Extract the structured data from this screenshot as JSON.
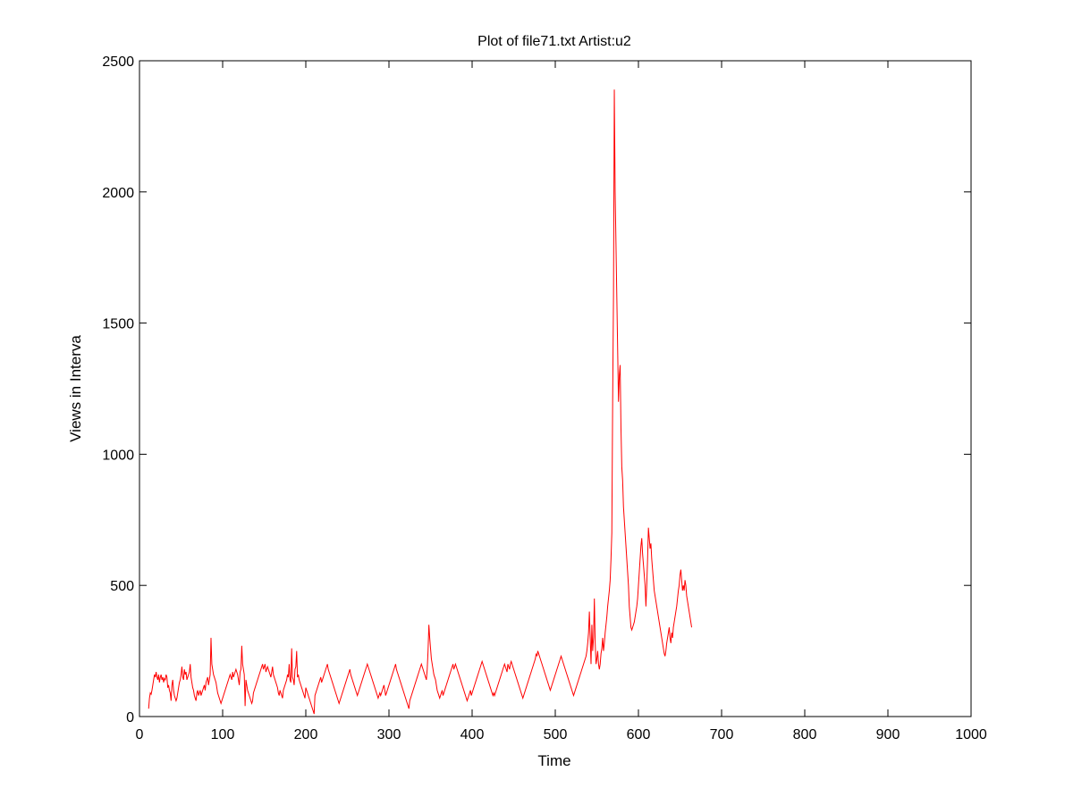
{
  "chart_data": {
    "type": "line",
    "title": "Plot of file71.txt Artist:u2",
    "xlabel": "Time",
    "ylabel": "Views in Interva",
    "xlim": [
      0,
      1000
    ],
    "ylim": [
      0,
      2500
    ],
    "xticks": [
      0,
      100,
      200,
      300,
      400,
      500,
      600,
      700,
      800,
      900,
      1000
    ],
    "yticks": [
      0,
      500,
      1000,
      1500,
      2000,
      2500
    ],
    "grid": false,
    "line_color": "#ff0000",
    "series": [
      {
        "x_start": 11,
        "x_step": 1,
        "values": [
          30,
          70,
          90,
          85,
          100,
          120,
          140,
          160,
          150,
          170,
          150,
          140,
          160,
          130,
          150,
          160,
          140,
          150,
          130,
          145,
          140,
          160,
          150,
          110,
          120,
          100,
          90,
          60,
          120,
          140,
          100,
          80,
          70,
          60,
          70,
          90,
          110,
          130,
          140,
          160,
          190,
          150,
          140,
          180,
          160,
          170,
          140,
          150,
          160,
          170,
          200,
          150,
          130,
          110,
          100,
          80,
          70,
          60,
          90,
          100,
          80,
          90,
          100,
          80,
          90,
          100,
          110,
          120,
          100,
          130,
          140,
          150,
          120,
          140,
          160,
          300,
          200,
          180,
          160,
          150,
          140,
          130,
          110,
          90,
          80,
          70,
          60,
          50,
          60,
          70,
          80,
          90,
          100,
          110,
          120,
          130,
          140,
          150,
          160,
          150,
          140,
          170,
          150,
          160,
          170,
          180,
          170,
          160,
          140,
          120,
          170,
          180,
          270,
          200,
          180,
          160,
          40,
          140,
          120,
          100,
          90,
          80,
          70,
          60,
          50,
          60,
          90,
          100,
          110,
          120,
          130,
          140,
          150,
          160,
          170,
          180,
          190,
          200,
          180,
          190,
          200,
          170,
          180,
          190,
          180,
          170,
          160,
          150,
          170,
          190,
          160,
          150,
          140,
          130,
          120,
          110,
          90,
          80,
          100,
          90,
          80,
          70,
          100,
          110,
          120,
          130,
          140,
          160,
          150,
          200,
          140,
          130,
          260,
          150,
          140,
          120,
          180,
          190,
          250,
          150,
          160,
          140,
          130,
          120,
          110,
          100,
          90,
          80,
          70,
          110,
          100,
          90,
          80,
          70,
          60,
          50,
          40,
          30,
          20,
          10,
          80,
          90,
          100,
          110,
          120,
          130,
          140,
          150,
          130,
          140,
          150,
          160,
          170,
          180,
          190,
          200,
          180,
          170,
          160,
          150,
          140,
          130,
          120,
          110,
          100,
          90,
          80,
          70,
          60,
          50,
          60,
          70,
          80,
          90,
          100,
          110,
          120,
          130,
          140,
          150,
          160,
          170,
          180,
          160,
          150,
          140,
          130,
          120,
          110,
          100,
          90,
          80,
          90,
          100,
          110,
          120,
          130,
          140,
          150,
          160,
          170,
          180,
          190,
          200,
          190,
          180,
          170,
          160,
          150,
          140,
          130,
          120,
          110,
          100,
          90,
          80,
          70,
          80,
          90,
          80,
          90,
          100,
          110,
          120,
          100,
          80,
          90,
          100,
          110,
          120,
          130,
          140,
          150,
          160,
          170,
          180,
          190,
          200,
          180,
          170,
          160,
          150,
          140,
          130,
          120,
          110,
          100,
          90,
          80,
          70,
          60,
          50,
          40,
          30,
          60,
          70,
          80,
          90,
          100,
          110,
          120,
          130,
          140,
          150,
          160,
          170,
          180,
          190,
          200,
          190,
          180,
          170,
          160,
          150,
          140,
          180,
          250,
          350,
          300,
          260,
          220,
          200,
          180,
          160,
          150,
          140,
          120,
          100,
          90,
          80,
          70,
          80,
          90,
          100,
          80,
          90,
          100,
          110,
          120,
          130,
          140,
          150,
          160,
          170,
          180,
          190,
          200,
          180,
          190,
          200,
          190,
          180,
          170,
          160,
          150,
          140,
          130,
          120,
          110,
          100,
          90,
          80,
          70,
          60,
          70,
          80,
          90,
          100,
          80,
          90,
          100,
          110,
          120,
          130,
          140,
          150,
          160,
          170,
          180,
          190,
          200,
          210,
          200,
          190,
          180,
          170,
          160,
          150,
          140,
          130,
          120,
          110,
          100,
          90,
          80,
          90,
          80,
          90,
          100,
          110,
          120,
          130,
          140,
          150,
          160,
          170,
          180,
          190,
          200,
          190,
          180,
          170,
          200,
          190,
          180,
          200,
          210,
          200,
          190,
          180,
          170,
          160,
          150,
          140,
          130,
          120,
          110,
          100,
          90,
          80,
          70,
          80,
          90,
          100,
          110,
          120,
          130,
          140,
          150,
          160,
          170,
          180,
          190,
          200,
          210,
          220,
          240,
          230,
          250,
          240,
          230,
          220,
          210,
          200,
          190,
          180,
          170,
          160,
          150,
          140,
          130,
          120,
          110,
          100,
          110,
          120,
          130,
          140,
          150,
          160,
          170,
          180,
          190,
          200,
          210,
          220,
          230,
          220,
          210,
          200,
          190,
          180,
          170,
          160,
          150,
          140,
          130,
          120,
          110,
          100,
          90,
          80,
          90,
          100,
          110,
          120,
          130,
          140,
          150,
          160,
          170,
          180,
          190,
          200,
          210,
          220,
          230,
          250,
          280,
          320,
          400,
          300,
          200,
          350,
          250,
          300,
          450,
          280,
          200,
          220,
          250,
          200,
          180,
          200,
          240,
          260,
          300,
          250,
          280,
          320,
          350,
          380,
          420,
          450,
          480,
          520,
          600,
          700,
          1200,
          1600,
          2390,
          2000,
          1800,
          1600,
          1400,
          1200,
          1300,
          1340,
          1100,
          950,
          900,
          800,
          750,
          700,
          650,
          600,
          550,
          500,
          420,
          380,
          340,
          330,
          340,
          350,
          360,
          380,
          400,
          420,
          450,
          500,
          550,
          600,
          650,
          680,
          620,
          580,
          540,
          500,
          420,
          500,
          600,
          720,
          680,
          640,
          660,
          600,
          560,
          520,
          480,
          460,
          440,
          420,
          400,
          380,
          360,
          340,
          320,
          300,
          280,
          260,
          240,
          230,
          250,
          280,
          300,
          320,
          340,
          300,
          280,
          320,
          300,
          340,
          360,
          380,
          400,
          420,
          450,
          480,
          500,
          540,
          560,
          520,
          480,
          500,
          480,
          520,
          500,
          460,
          440,
          420,
          400,
          380,
          360,
          340
        ]
      }
    ]
  }
}
